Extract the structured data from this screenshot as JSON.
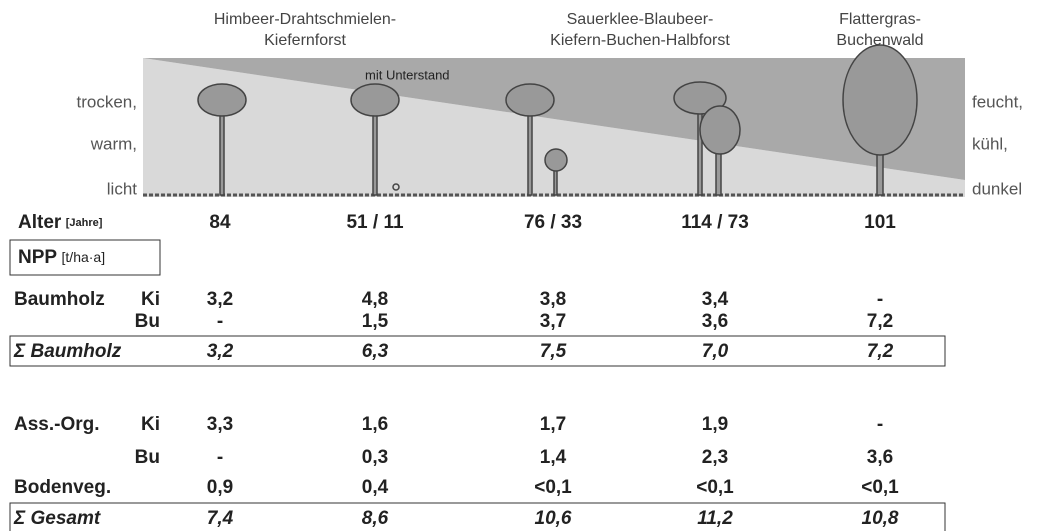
{
  "header": {
    "columns": [
      [
        "Himbeer-Drahtschmielen-",
        "Kiefernforst"
      ],
      [
        "Sauerklee-Blaubeer-",
        "Kiefern-Buchen-Halbforst"
      ],
      [
        "Flattergras-",
        "Buchenwald"
      ]
    ],
    "annotation": "mit Unterstand"
  },
  "left_labels": [
    "trocken,",
    "warm,",
    "licht"
  ],
  "right_labels": [
    "feucht,",
    "kühl,",
    "dunkel"
  ],
  "age": {
    "label": "Alter",
    "unit": "[Jahre]",
    "values": [
      "84",
      "51 / 11",
      "76 / 33",
      "114 / 73",
      "101"
    ]
  },
  "npp": {
    "label": "NPP",
    "unit": "[t/ha·a]"
  },
  "rows": [
    {
      "label": "Baumholz",
      "sub": "Ki",
      "values": [
        "3,2",
        "4,8",
        "3,8",
        "3,4",
        "-"
      ]
    },
    {
      "sub": "Bu",
      "values": [
        "-",
        "1,5",
        "3,7",
        "3,6",
        "7,2"
      ]
    },
    {
      "label": "Σ Baumholz",
      "values": [
        "3,2",
        "6,3",
        "7,5",
        "7,0",
        "7,2"
      ],
      "sum": true
    },
    {
      "label": "Ass.-Org.",
      "sub": "Ki",
      "values": [
        "3,3",
        "1,6",
        "1,7",
        "1,9",
        "-"
      ]
    },
    {
      "sub": "Bu",
      "values": [
        "-",
        "0,3",
        "1,4",
        "2,3",
        "3,6"
      ]
    },
    {
      "label": "Bodenveg.",
      "values": [
        "0,9",
        "0,4",
        "<0,1",
        "<0,1",
        "<0,1"
      ]
    },
    {
      "label": "Σ Gesamt",
      "values": [
        "7,4",
        "8,6",
        "10,6",
        "11,2",
        "10,8"
      ],
      "sum": true
    }
  ]
}
